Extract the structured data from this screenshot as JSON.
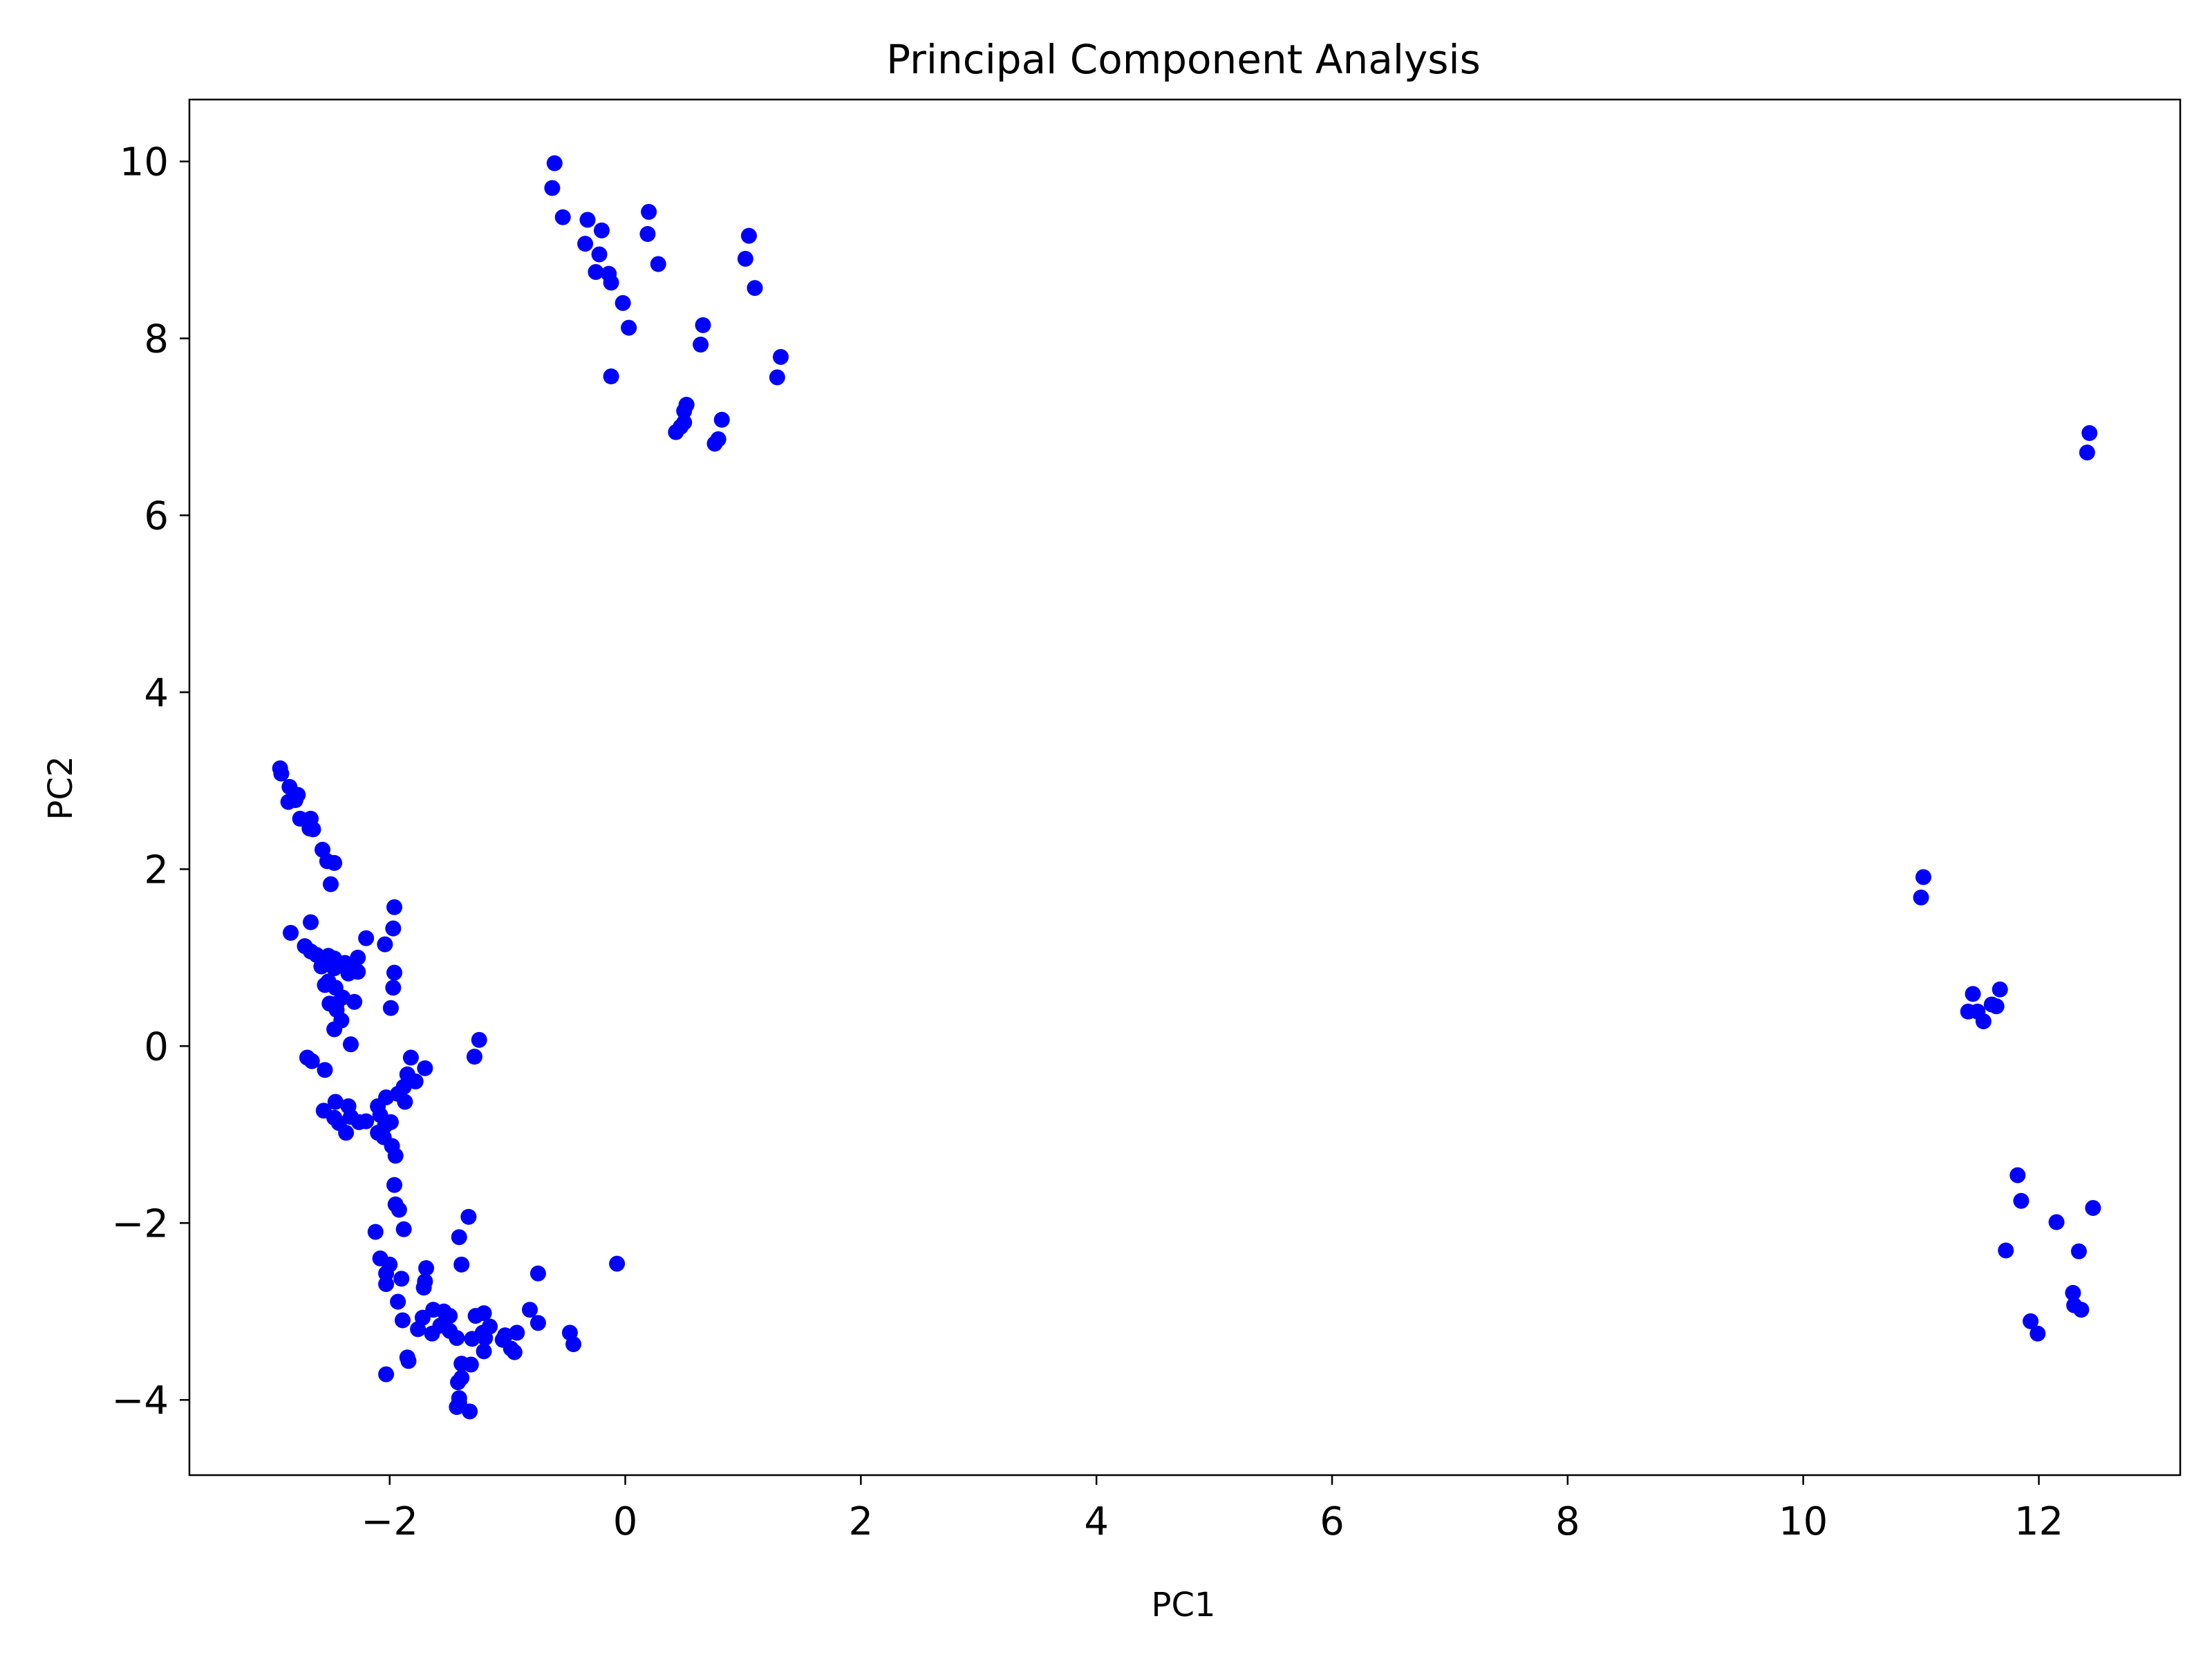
{
  "chart_data": {
    "type": "scatter",
    "title": "Principal Component Analysis",
    "xlabel": "PC1",
    "ylabel": "PC2",
    "xlim": [
      -3.7,
      13.2
    ],
    "ylim": [
      -4.85,
      10.7
    ],
    "grid": false,
    "point_color": "#0000ff",
    "xticks": [
      -2,
      0,
      2,
      4,
      6,
      8,
      10,
      12
    ],
    "yticks": [
      -4,
      -2,
      0,
      2,
      4,
      6,
      8,
      10
    ],
    "xtick_labels": [
      "−2",
      "0",
      "2",
      "4",
      "6",
      "8",
      "10",
      "12"
    ],
    "ytick_labels": [
      "−4",
      "−2",
      "0",
      "2",
      "4",
      "6",
      "8",
      "10"
    ],
    "series": [
      {
        "points": [
          [
            -0.6,
            9.98
          ],
          [
            -0.62,
            9.7
          ],
          [
            -0.53,
            9.37
          ],
          [
            -0.32,
            9.34
          ],
          [
            -0.2,
            9.22
          ],
          [
            0.2,
            9.43
          ],
          [
            0.19,
            9.18
          ],
          [
            -0.34,
            9.07
          ],
          [
            -0.22,
            8.95
          ],
          [
            -0.14,
            8.73
          ],
          [
            -0.25,
            8.75
          ],
          [
            -0.12,
            8.63
          ],
          [
            0.28,
            8.84
          ],
          [
            1.05,
            9.16
          ],
          [
            1.02,
            8.9
          ],
          [
            1.1,
            8.57
          ],
          [
            -0.02,
            8.4
          ],
          [
            0.03,
            8.12
          ],
          [
            0.66,
            8.15
          ],
          [
            0.64,
            7.93
          ],
          [
            1.32,
            7.79
          ],
          [
            1.29,
            7.56
          ],
          [
            -0.12,
            7.57
          ],
          [
            0.52,
            7.25
          ],
          [
            0.5,
            7.18
          ],
          [
            0.82,
            7.08
          ],
          [
            0.5,
            7.05
          ],
          [
            0.47,
            7.0
          ],
          [
            0.43,
            6.94
          ],
          [
            0.79,
            6.86
          ],
          [
            0.76,
            6.81
          ],
          [
            12.43,
            6.93
          ],
          [
            12.41,
            6.71
          ],
          [
            -2.93,
            3.14
          ],
          [
            -2.92,
            3.08
          ],
          [
            -2.85,
            2.93
          ],
          [
            -2.78,
            2.84
          ],
          [
            -2.8,
            2.78
          ],
          [
            -2.86,
            2.76
          ],
          [
            -2.67,
            2.57
          ],
          [
            -2.76,
            2.57
          ],
          [
            -2.68,
            2.46
          ],
          [
            -2.65,
            2.45
          ],
          [
            -2.57,
            2.22
          ],
          [
            -2.53,
            2.09
          ],
          [
            -2.47,
            2.07
          ],
          [
            -2.5,
            1.83
          ],
          [
            -1.96,
            1.57
          ],
          [
            -2.67,
            1.4
          ],
          [
            -1.97,
            1.33
          ],
          [
            -2.84,
            1.28
          ],
          [
            -2.2,
            1.22
          ],
          [
            -2.04,
            1.15
          ],
          [
            -2.72,
            1.13
          ],
          [
            -2.67,
            1.07
          ],
          [
            -2.62,
            1.03
          ],
          [
            -2.52,
            1.02
          ],
          [
            -2.47,
            0.99
          ],
          [
            -2.27,
            1.0
          ],
          [
            -2.38,
            0.94
          ],
          [
            -2.58,
            0.9
          ],
          [
            -2.31,
            0.88
          ],
          [
            -2.47,
            0.88
          ],
          [
            -2.27,
            0.84
          ],
          [
            -1.96,
            0.83
          ],
          [
            -2.35,
            0.82
          ],
          [
            -2.52,
            0.73
          ],
          [
            -2.55,
            0.69
          ],
          [
            -2.46,
            0.66
          ],
          [
            -1.97,
            0.66
          ],
          [
            -2.4,
            0.55
          ],
          [
            -2.51,
            0.48
          ],
          [
            -2.45,
            0.48
          ],
          [
            -2.3,
            0.5
          ],
          [
            -2.45,
            0.41
          ],
          [
            -1.99,
            0.43
          ],
          [
            -2.41,
            0.29
          ],
          [
            -2.47,
            0.19
          ],
          [
            -2.33,
            0.02
          ],
          [
            -1.24,
            0.07
          ],
          [
            -2.7,
            -0.13
          ],
          [
            -2.66,
            -0.17
          ],
          [
            -1.28,
            -0.12
          ],
          [
            -1.82,
            -0.13
          ],
          [
            -2.55,
            -0.27
          ],
          [
            -1.7,
            -0.25
          ],
          [
            -1.85,
            -0.32
          ],
          [
            -1.78,
            -0.4
          ],
          [
            -1.88,
            -0.46
          ],
          [
            -1.93,
            -0.54
          ],
          [
            -2.03,
            -0.58
          ],
          [
            -1.87,
            -0.63
          ],
          [
            -2.46,
            -0.63
          ],
          [
            -2.1,
            -0.68
          ],
          [
            -2.35,
            -0.68
          ],
          [
            -2.56,
            -0.73
          ],
          [
            -2.08,
            -0.78
          ],
          [
            -2.47,
            -0.81
          ],
          [
            -2.33,
            -0.8
          ],
          [
            -2.26,
            -0.86
          ],
          [
            -2.2,
            -0.85
          ],
          [
            -2.43,
            -0.87
          ],
          [
            -2.04,
            -0.9
          ],
          [
            -1.99,
            -0.86
          ],
          [
            -2.1,
            -0.98
          ],
          [
            -2.37,
            -0.98
          ],
          [
            -2.05,
            -1.03
          ],
          [
            -1.98,
            -1.13
          ],
          [
            -1.95,
            -1.24
          ],
          [
            -1.96,
            -1.57
          ],
          [
            -1.95,
            -1.79
          ],
          [
            -1.92,
            -1.85
          ],
          [
            -1.88,
            -2.07
          ],
          [
            -1.33,
            -1.93
          ],
          [
            -2.12,
            -2.1
          ],
          [
            -1.41,
            -2.16
          ],
          [
            -2.08,
            -2.4
          ],
          [
            -0.07,
            -2.46
          ],
          [
            -2.0,
            -2.47
          ],
          [
            -1.69,
            -2.51
          ],
          [
            -1.39,
            -2.47
          ],
          [
            -0.74,
            -2.57
          ],
          [
            -2.03,
            -2.57
          ],
          [
            -1.9,
            -2.63
          ],
          [
            -1.7,
            -2.66
          ],
          [
            -2.03,
            -2.69
          ],
          [
            -1.71,
            -2.73
          ],
          [
            -1.93,
            -2.89
          ],
          [
            -1.63,
            -2.98
          ],
          [
            -1.54,
            -3.0
          ],
          [
            -1.27,
            -3.05
          ],
          [
            -1.2,
            -3.02
          ],
          [
            -1.49,
            -3.05
          ],
          [
            -0.81,
            -2.98
          ],
          [
            -1.89,
            -3.1
          ],
          [
            -1.72,
            -3.07
          ],
          [
            -1.57,
            -3.16
          ],
          [
            -0.74,
            -3.13
          ],
          [
            -1.76,
            -3.2
          ],
          [
            -1.49,
            -3.22
          ],
          [
            -1.15,
            -3.17
          ],
          [
            -1.64,
            -3.25
          ],
          [
            -1.21,
            -3.24
          ],
          [
            -1.02,
            -3.27
          ],
          [
            -0.47,
            -3.24
          ],
          [
            -0.92,
            -3.24
          ],
          [
            -1.43,
            -3.3
          ],
          [
            -1.3,
            -3.31
          ],
          [
            -1.19,
            -3.3
          ],
          [
            -1.04,
            -3.32
          ],
          [
            -0.44,
            -3.37
          ],
          [
            -1.2,
            -3.45
          ],
          [
            -0.97,
            -3.42
          ],
          [
            -0.94,
            -3.46
          ],
          [
            -1.85,
            -3.52
          ],
          [
            -1.84,
            -3.56
          ],
          [
            -1.31,
            -3.6
          ],
          [
            -1.39,
            -3.59
          ],
          [
            -2.03,
            -3.71
          ],
          [
            -1.39,
            -3.75
          ],
          [
            -1.42,
            -3.8
          ],
          [
            -1.41,
            -3.98
          ],
          [
            -1.41,
            -4.03
          ],
          [
            -1.43,
            -4.08
          ],
          [
            -1.32,
            -4.13
          ],
          [
            11.02,
            1.91
          ],
          [
            11.0,
            1.68
          ],
          [
            11.67,
            0.64
          ],
          [
            11.44,
            0.59
          ],
          [
            11.6,
            0.47
          ],
          [
            11.64,
            0.45
          ],
          [
            11.4,
            0.39
          ],
          [
            11.48,
            0.39
          ],
          [
            11.53,
            0.28
          ],
          [
            11.82,
            -1.46
          ],
          [
            11.85,
            -1.75
          ],
          [
            12.46,
            -1.83
          ],
          [
            12.15,
            -1.99
          ],
          [
            11.72,
            -2.31
          ],
          [
            12.34,
            -2.32
          ],
          [
            12.29,
            -2.79
          ],
          [
            12.3,
            -2.93
          ],
          [
            12.36,
            -2.98
          ],
          [
            11.93,
            -3.11
          ],
          [
            11.99,
            -3.25
          ]
        ]
      }
    ]
  }
}
